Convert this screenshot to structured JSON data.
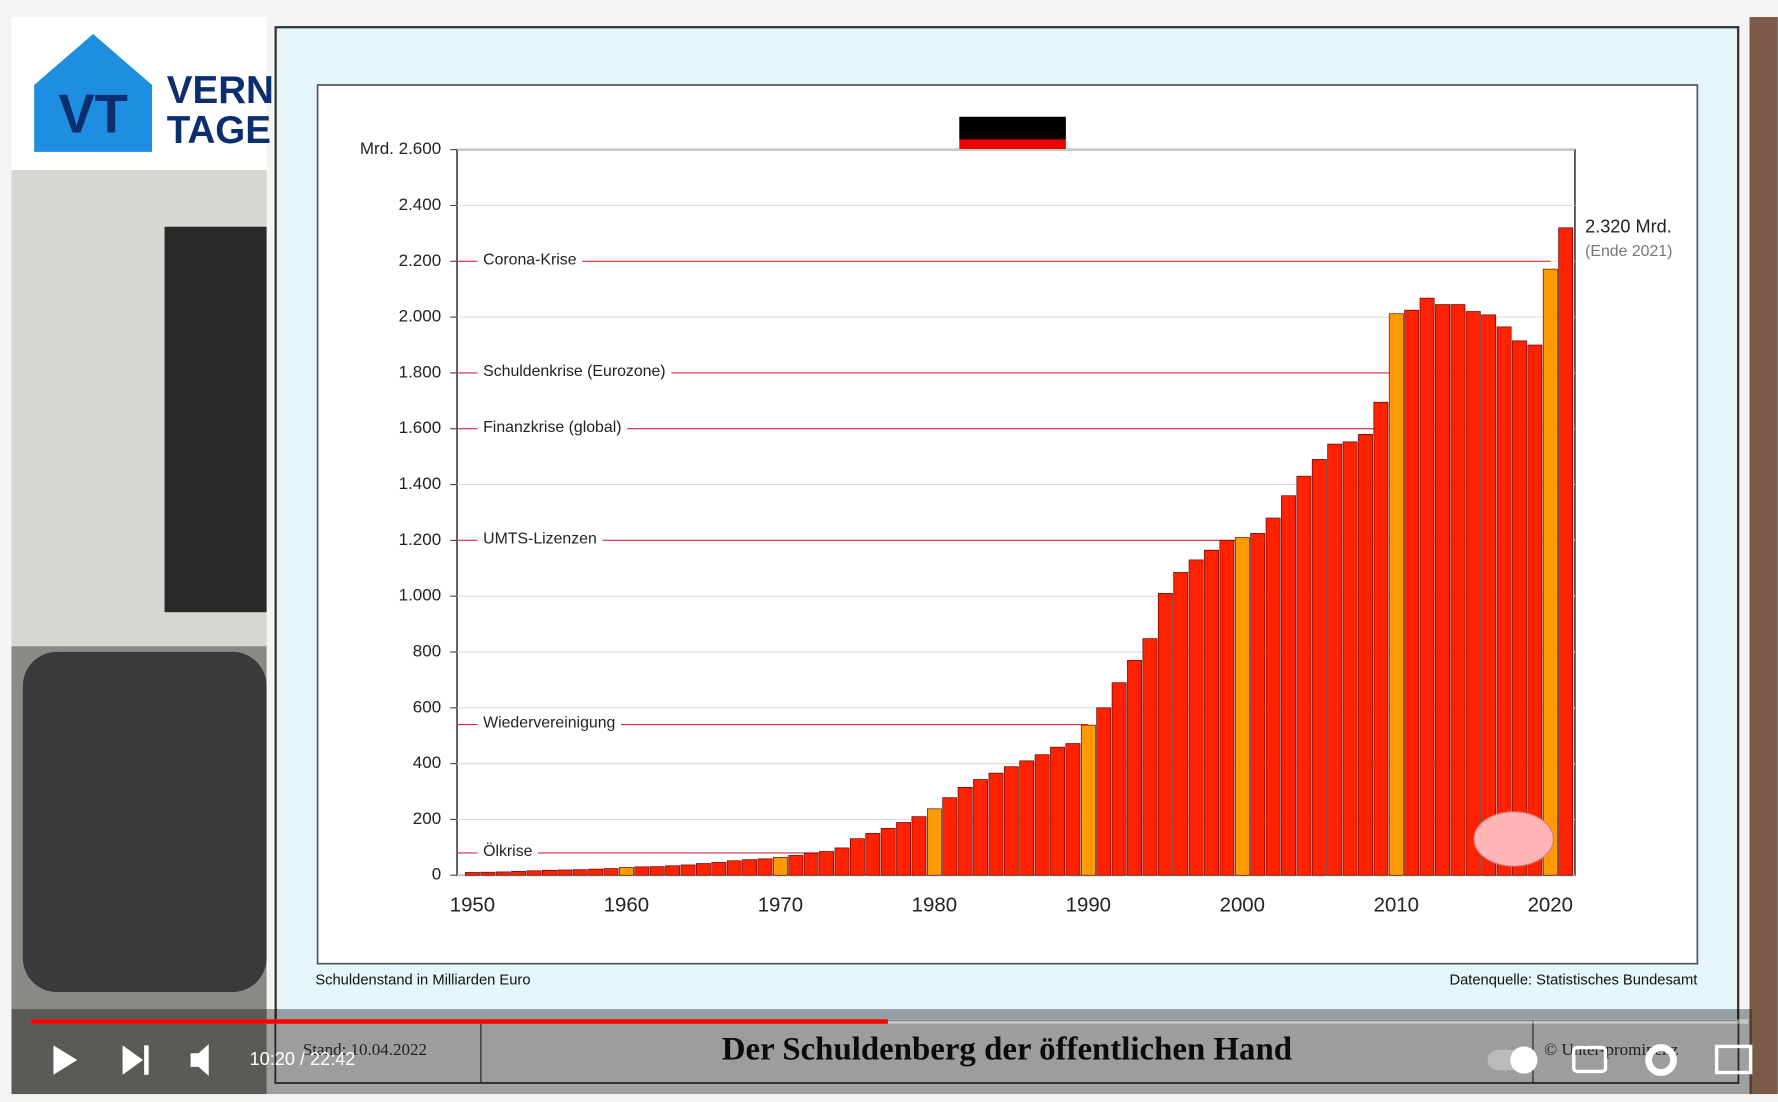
{
  "logo": {
    "mark": "VT",
    "line1": "VERN",
    "line2": "TAGE"
  },
  "chart_data": {
    "type": "bar",
    "x": [
      1950,
      1951,
      1952,
      1953,
      1954,
      1955,
      1956,
      1957,
      1958,
      1959,
      1960,
      1961,
      1962,
      1963,
      1964,
      1965,
      1966,
      1967,
      1968,
      1969,
      1970,
      1971,
      1972,
      1973,
      1974,
      1975,
      1976,
      1977,
      1978,
      1979,
      1980,
      1981,
      1982,
      1983,
      1984,
      1985,
      1986,
      1987,
      1988,
      1989,
      1990,
      1991,
      1992,
      1993,
      1994,
      1995,
      1996,
      1997,
      1998,
      1999,
      2000,
      2001,
      2002,
      2003,
      2004,
      2005,
      2006,
      2007,
      2008,
      2009,
      2010,
      2011,
      2012,
      2013,
      2014,
      2015,
      2016,
      2017,
      2018,
      2019,
      2020,
      2021
    ],
    "values": [
      10,
      11,
      12,
      14,
      16,
      18,
      19,
      20,
      22,
      24,
      28,
      30,
      31,
      34,
      37,
      42,
      46,
      52,
      56,
      59,
      64,
      71,
      79,
      85,
      98,
      131,
      150,
      168,
      189,
      210,
      238,
      278,
      315,
      343,
      366,
      389,
      410,
      432,
      459,
      472,
      538,
      600,
      690,
      770,
      848,
      1010,
      1085,
      1130,
      1165,
      1200,
      1210,
      1225,
      1280,
      1360,
      1430,
      1490,
      1545,
      1553,
      1580,
      1695,
      2012,
      2025,
      2068,
      2045,
      2045,
      2020,
      2008,
      1965,
      1915,
      1900,
      2172,
      2320
    ],
    "color": "#ff2200",
    "highlight_color": "#ff9a00",
    "highlight_years": [
      1960,
      1970,
      1980,
      1990,
      2000,
      2010,
      2020
    ],
    "xlim": [
      1949,
      2021.6
    ],
    "xticks": [
      1950,
      1960,
      1970,
      1980,
      1990,
      2000,
      2010,
      2020
    ],
    "ylim": [
      0,
      2600
    ],
    "yticks": [
      0,
      200,
      400,
      600,
      800,
      {
        "value": 1000,
        "label": "1.000"
      },
      {
        "value": 1200,
        "label": "1.200"
      },
      {
        "value": 1400,
        "label": "1.400"
      },
      {
        "value": 1600,
        "label": "1.600"
      },
      {
        "value": 1800,
        "label": "1.800"
      },
      {
        "value": 2000,
        "label": "2.000"
      },
      {
        "value": 2200,
        "label": "2.200"
      },
      {
        "value": 2400,
        "label": "2.400"
      },
      {
        "value": 2600,
        "label": "Mrd. 2.600"
      }
    ],
    "grid": true,
    "annotations": [
      {
        "text": "Ölkrise",
        "y": 80,
        "x": 1973
      },
      {
        "text": "Wiedervereinigung",
        "y": 540,
        "x": 1990
      },
      {
        "text": "UMTS-Lizenzen",
        "y": 1200,
        "x": 2000
      },
      {
        "text": "Finanzkrise (global)",
        "y": 1600,
        "x": 2009
      },
      {
        "text": "Schuldenkrise (Eurozone)",
        "y": 1800,
        "x": 2010
      },
      {
        "text": "Corona-Krise",
        "y": 2200,
        "x": 2020
      }
    ],
    "end_label": "2.320 Mrd.",
    "end_note": "(Ende 2021)",
    "caption_left": "Schuldenstand in Milliarden Euro",
    "caption_right": "Datenquelle: Statistisches Bundesamt"
  },
  "slide_footer": {
    "date": "Stand: 10.04.2022",
    "title": "Der Schuldenberg der öffentlichen Hand",
    "copyright": "© Unter-prominenz"
  },
  "player": {
    "time": "10:20 / 22:42"
  }
}
